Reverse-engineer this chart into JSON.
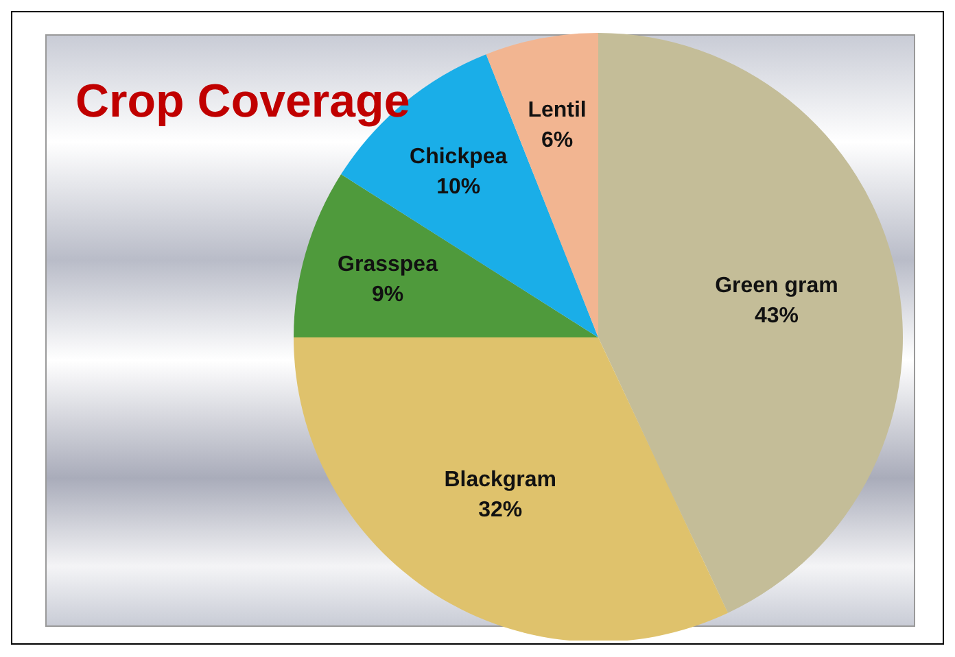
{
  "chart_data": {
    "type": "pie",
    "title": "Crop Coverage",
    "categories": [
      "Green gram",
      "Blackgram",
      "Grasspea",
      "Chickpea",
      "Lentil"
    ],
    "values": [
      43,
      32,
      9,
      10,
      6
    ],
    "value_labels": [
      "43%",
      "32%",
      "9%",
      "10%",
      "6%"
    ],
    "colors": [
      "#c4bd98",
      "#dfc26c",
      "#4f9a3c",
      "#1aaee8",
      "#f2b591"
    ],
    "legend": false
  }
}
